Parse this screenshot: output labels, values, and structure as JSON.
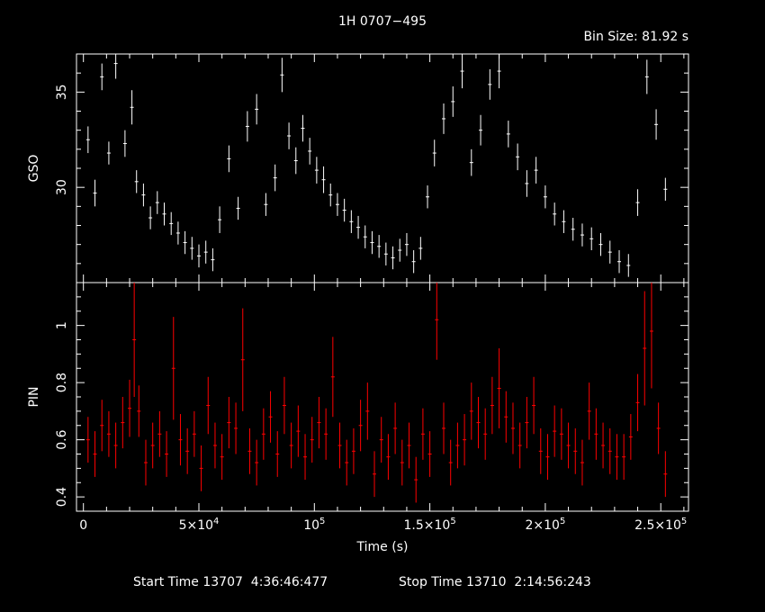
{
  "chart_data": [
    {
      "type": "scatter",
      "panel": "top",
      "title": "1H 0707−495",
      "subtitle": "Bin Size: 81.92 s",
      "ylabel": "GSO",
      "xlabel": "",
      "xlim": [
        -3000,
        262000
      ],
      "ylim": [
        25,
        37
      ],
      "x_ticks": [
        0,
        50000,
        100000,
        150000,
        200000,
        250000
      ],
      "y_ticks": [
        30,
        35
      ],
      "y_tick_labels": [
        "30",
        "35"
      ],
      "series": [
        {
          "color": "#ffffff",
          "x": [
            2000,
            5000,
            8000,
            11000,
            14000,
            18000,
            21000,
            23000,
            26000,
            29000,
            32000,
            35000,
            38000,
            41000,
            44000,
            47000,
            50000,
            53000,
            56000,
            59000,
            63000,
            67000,
            71000,
            75000,
            79000,
            83000,
            86000,
            89000,
            92000,
            95000,
            98000,
            101000,
            104000,
            107000,
            110000,
            113000,
            116000,
            119000,
            122000,
            125000,
            128000,
            131000,
            134000,
            137000,
            140000,
            143000,
            146000,
            149000,
            152000,
            156000,
            160000,
            164000,
            168000,
            172000,
            176000,
            180000,
            184000,
            188000,
            192000,
            196000,
            200000,
            204000,
            208000,
            212000,
            216000,
            220000,
            224000,
            228000,
            232000,
            236000,
            240000,
            244000,
            248000,
            252000
          ],
          "y": [
            32.5,
            29.7,
            35.8,
            31.8,
            36.5,
            32.3,
            34.2,
            30.3,
            29.6,
            28.4,
            29.2,
            28.6,
            28.1,
            27.6,
            27.1,
            26.8,
            26.4,
            26.6,
            26.2,
            28.3,
            31.5,
            28.9,
            33.2,
            34.1,
            29.1,
            30.5,
            35.9,
            32.7,
            31.4,
            33.1,
            31.9,
            30.9,
            30.4,
            29.6,
            29.1,
            28.8,
            28.2,
            27.9,
            27.4,
            27.1,
            26.9,
            26.5,
            26.3,
            26.7,
            27.0,
            26.1,
            26.8,
            29.5,
            31.8,
            33.6,
            34.5,
            36.1,
            31.3,
            33.0,
            35.4,
            36.1,
            32.8,
            31.6,
            30.2,
            30.9,
            29.5,
            28.6,
            28.2,
            27.8,
            27.5,
            27.3,
            27.0,
            26.6,
            26.1,
            25.9,
            29.2,
            35.8,
            33.3,
            29.9
          ],
          "err": [
            0.7,
            0.7,
            0.7,
            0.6,
            0.8,
            0.7,
            0.9,
            0.6,
            0.6,
            0.6,
            0.6,
            0.6,
            0.6,
            0.6,
            0.6,
            0.6,
            0.6,
            0.6,
            0.6,
            0.7,
            0.7,
            0.6,
            0.8,
            0.8,
            0.6,
            0.7,
            0.9,
            0.7,
            0.7,
            0.7,
            0.7,
            0.7,
            0.7,
            0.6,
            0.6,
            0.6,
            0.6,
            0.6,
            0.6,
            0.6,
            0.6,
            0.6,
            0.6,
            0.6,
            0.6,
            0.6,
            0.6,
            0.6,
            0.7,
            0.8,
            0.8,
            0.9,
            0.7,
            0.8,
            0.8,
            0.9,
            0.7,
            0.7,
            0.7,
            0.7,
            0.6,
            0.6,
            0.6,
            0.6,
            0.6,
            0.6,
            0.6,
            0.6,
            0.6,
            0.6,
            0.7,
            0.9,
            0.8,
            0.6
          ]
        }
      ]
    },
    {
      "type": "scatter",
      "panel": "bottom",
      "ylabel": "PIN",
      "xlabel": "Time (s)",
      "xlim": [
        -3000,
        262000
      ],
      "ylim": [
        0.35,
        1.15
      ],
      "x_ticks": [
        0,
        50000,
        100000,
        150000,
        200000,
        250000
      ],
      "x_tick_labels": [
        {
          "base": "0",
          "exp": ""
        },
        {
          "base": "5×10",
          "exp": "4"
        },
        {
          "base": "10",
          "exp": "5"
        },
        {
          "base": "1.5×10",
          "exp": "5"
        },
        {
          "base": "2×10",
          "exp": "5"
        },
        {
          "base": "2.5×10",
          "exp": "5"
        }
      ],
      "y_ticks": [
        0.4,
        0.6,
        0.8,
        1.0
      ],
      "y_tick_labels": [
        "0.4",
        "0.6",
        "0.8",
        "1"
      ],
      "series": [
        {
          "color": "#ff0000",
          "x": [
            2000,
            5000,
            8000,
            11000,
            14000,
            17000,
            20000,
            22000,
            24000,
            27000,
            30000,
            33000,
            36000,
            39000,
            42000,
            45000,
            48000,
            51000,
            54000,
            57000,
            60000,
            63000,
            66000,
            69000,
            72000,
            75000,
            78000,
            81000,
            84000,
            87000,
            90000,
            93000,
            96000,
            99000,
            102000,
            105000,
            108000,
            111000,
            114000,
            117000,
            120000,
            123000,
            126000,
            129000,
            132000,
            135000,
            138000,
            141000,
            144000,
            147000,
            150000,
            153000,
            156000,
            159000,
            162000,
            165000,
            168000,
            171000,
            174000,
            177000,
            180000,
            183000,
            186000,
            189000,
            192000,
            195000,
            198000,
            201000,
            204000,
            207000,
            210000,
            213000,
            216000,
            219000,
            222000,
            225000,
            228000,
            231000,
            234000,
            237000,
            240000,
            243000,
            246000,
            249000,
            252000
          ],
          "y": [
            0.6,
            0.55,
            0.65,
            0.62,
            0.58,
            0.66,
            0.71,
            0.95,
            0.7,
            0.52,
            0.58,
            0.62,
            0.55,
            0.85,
            0.6,
            0.56,
            0.62,
            0.5,
            0.72,
            0.58,
            0.54,
            0.66,
            0.64,
            0.88,
            0.56,
            0.52,
            0.62,
            0.68,
            0.55,
            0.72,
            0.58,
            0.63,
            0.54,
            0.6,
            0.66,
            0.62,
            0.82,
            0.58,
            0.52,
            0.56,
            0.65,
            0.7,
            0.48,
            0.6,
            0.54,
            0.64,
            0.52,
            0.58,
            0.46,
            0.62,
            0.55,
            1.02,
            0.64,
            0.52,
            0.58,
            0.6,
            0.7,
            0.66,
            0.62,
            0.72,
            0.78,
            0.68,
            0.64,
            0.58,
            0.66,
            0.72,
            0.56,
            0.54,
            0.63,
            0.62,
            0.58,
            0.56,
            0.52,
            0.7,
            0.62,
            0.58,
            0.56,
            0.54,
            0.54,
            0.61,
            0.73,
            0.92,
            0.98,
            0.64,
            0.48
          ],
          "err": [
            0.08,
            0.08,
            0.09,
            0.08,
            0.08,
            0.09,
            0.1,
            0.2,
            0.09,
            0.08,
            0.08,
            0.08,
            0.08,
            0.18,
            0.09,
            0.08,
            0.08,
            0.08,
            0.1,
            0.08,
            0.08,
            0.09,
            0.09,
            0.18,
            0.08,
            0.08,
            0.09,
            0.09,
            0.08,
            0.1,
            0.08,
            0.09,
            0.08,
            0.08,
            0.09,
            0.09,
            0.14,
            0.08,
            0.08,
            0.08,
            0.09,
            0.1,
            0.08,
            0.08,
            0.08,
            0.09,
            0.08,
            0.08,
            0.08,
            0.09,
            0.08,
            0.14,
            0.09,
            0.08,
            0.08,
            0.09,
            0.1,
            0.09,
            0.09,
            0.1,
            0.14,
            0.09,
            0.09,
            0.08,
            0.09,
            0.1,
            0.08,
            0.08,
            0.09,
            0.09,
            0.08,
            0.08,
            0.08,
            0.1,
            0.09,
            0.08,
            0.08,
            0.08,
            0.08,
            0.08,
            0.1,
            0.2,
            0.2,
            0.09,
            0.08
          ]
        }
      ]
    }
  ],
  "footer": {
    "start_label": "Start Time 13707  4:36:46:477",
    "stop_label": "Stop Time 13710  2:14:56:243"
  }
}
